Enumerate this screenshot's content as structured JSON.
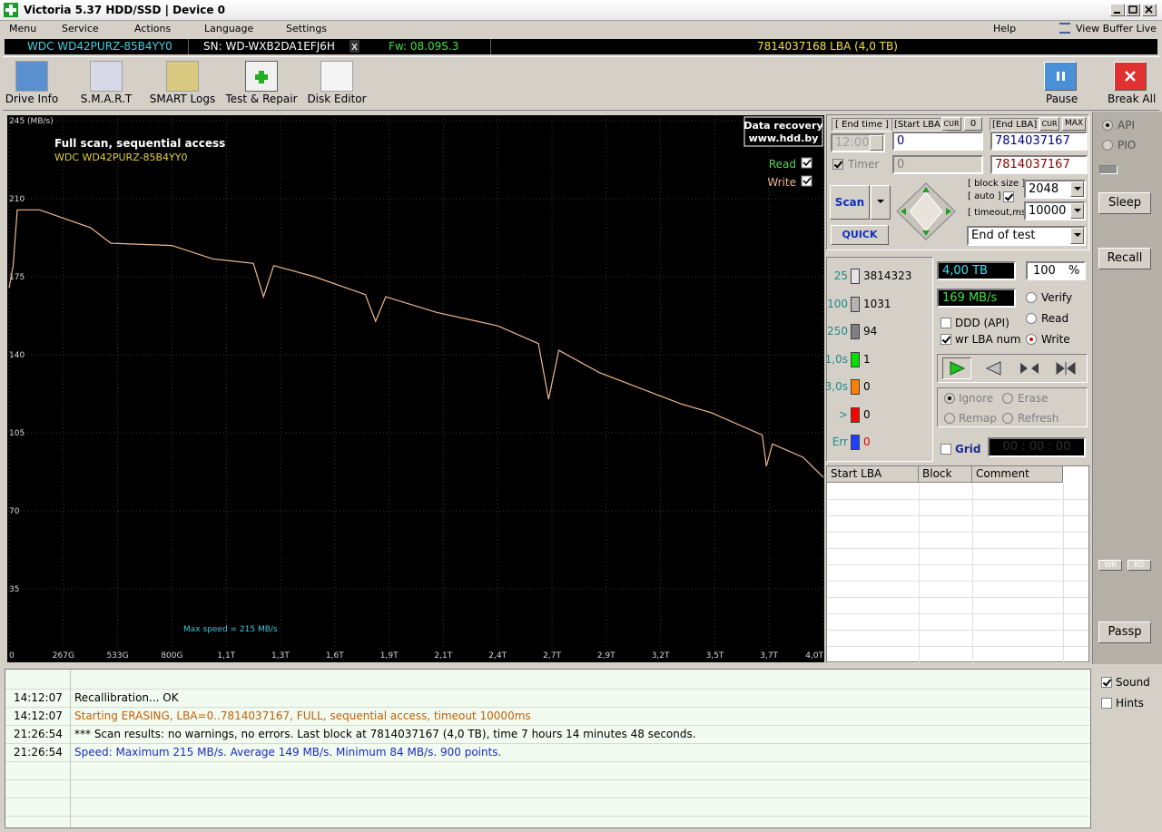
{
  "window": {
    "title": "Victoria 5.37 HDD/SSD | Device 0"
  },
  "menu": [
    "Menu",
    "Service",
    "Actions",
    "Language",
    "Settings"
  ],
  "help": "Help",
  "view_buffer": "View Buffer Live",
  "device": {
    "model": "WDC WD42PURZ-85B4YY0",
    "serial": "SN: WD-WXB2DA1EFJ6H",
    "close": "x",
    "firmware": "Fw: 08.09S.3",
    "capacity": "7814037168 LBA (4,0 TB)"
  },
  "toolbar": [
    "Drive Info",
    "S.M.A.R.T",
    "SMART Logs",
    "Test & Repair",
    "Disk Editor"
  ],
  "pause": "Pause",
  "break_all": "Break All",
  "chart_data": {
    "type": "line",
    "title": "Full scan, sequential access",
    "subtitle": "WDC WD42PURZ-85B4YY0",
    "watermark": [
      "Data recovery",
      "www.hdd.by"
    ],
    "annotation": "Max speed = 215 MB/s",
    "read": {
      "name": "Read",
      "color": "#5ad25a"
    },
    "xlim": [
      0,
      4.0
    ],
    "xticks": [
      0,
      {
        "value": 0.267,
        "label": "267G"
      },
      {
        "value": 0.533,
        "label": "533G"
      },
      {
        "value": 0.8,
        "label": "800G"
      },
      {
        "value": 1.067,
        "label": "1,1T"
      },
      {
        "value": 1.333,
        "label": "1,3T"
      },
      {
        "value": 1.6,
        "label": "1,6T"
      },
      {
        "value": 1.867,
        "label": "1,9T"
      },
      {
        "value": 2.133,
        "label": "2,1T"
      },
      {
        "value": 2.4,
        "label": "2,4T"
      },
      {
        "value": 2.667,
        "label": "2,7T"
      },
      {
        "value": 2.933,
        "label": "2,9T"
      },
      {
        "value": 3.2,
        "label": "3,2T"
      },
      {
        "value": 3.467,
        "label": "3,5T"
      },
      {
        "value": 3.733,
        "label": "3,7T"
      },
      {
        "value": 4.0,
        "label": "4,0T"
      }
    ],
    "ylim": [
      0,
      245
    ],
    "yticks": [
      35,
      70,
      105,
      140,
      175,
      210,
      {
        "value": 245,
        "label": "245 (MB/s)"
      }
    ],
    "grid": true,
    "series": [
      {
        "name": "Write",
        "color": "#f0b88c",
        "x": [
          0,
          0.02,
          0.04,
          0.15,
          0.4,
          0.5,
          0.8,
          1.0,
          1.2,
          1.25,
          1.3,
          1.5,
          1.75,
          1.8,
          1.85,
          2.1,
          2.4,
          2.6,
          2.65,
          2.7,
          2.9,
          3.1,
          3.3,
          3.45,
          3.7,
          3.72,
          3.75,
          3.9,
          4.0
        ],
        "values": [
          170,
          180,
          205,
          205,
          197,
          190,
          189,
          183,
          181,
          166,
          180,
          175,
          167,
          155,
          166,
          159,
          153,
          145,
          120,
          142,
          132,
          125,
          118,
          114,
          104,
          90,
          100,
          94,
          85
        ]
      }
    ]
  },
  "scan_settings": {
    "end_time_label": "[ End time ]",
    "start_lba_label": "[Start LBA]",
    "cur": "CUR",
    "zero": "0",
    "end_lba_label": "[End LBA]",
    "cur_end": "CUR",
    "max": "MAX",
    "time": "12:00",
    "start_lba": "0",
    "end_lba": "7814037167",
    "timer": "Timer",
    "timer_value": "0",
    "end_lba_current": "7814037167",
    "scan": "Scan",
    "quick": "QUICK",
    "block_size_label": "[ block size ]",
    "auto_label": "[ auto ]",
    "block_size": "2048",
    "timeout_label": "[ timeout,ms ]",
    "timeout": "10000",
    "end_action": "End of test"
  },
  "counters": [
    {
      "label": "25",
      "count": 3814323,
      "color": "#e4e4e4"
    },
    {
      "label": "100",
      "count": 1031,
      "color": "#b4b4b4"
    },
    {
      "label": "250",
      "count": 94,
      "color": "#808080"
    },
    {
      "label": "1,0s",
      "count": 1,
      "color": "#00e000"
    },
    {
      "label": "3,0s",
      "count": 0,
      "color": "#ff8000"
    },
    {
      "label": ">",
      "count": 0,
      "color": "#ff0000"
    },
    {
      "label": "Err",
      "count": 0,
      "color": "#2040ff"
    }
  ],
  "status": {
    "size": "4,00 TB",
    "percent": "100",
    "percent_unit": "%",
    "speed": "169 MB/s",
    "verify": "Verify",
    "read": "Read",
    "write": "Write",
    "ddd": "DDD (API)",
    "wr_lba": "wr LBA num",
    "ignore": "Ignore",
    "erase": "Erase",
    "remap": "Remap",
    "refresh": "Refresh",
    "grid": "Grid",
    "clock": "00 : 00 : 00"
  },
  "defect_table": {
    "columns": [
      "Start LBA",
      "Block",
      "Comment"
    ]
  },
  "side": {
    "api": "API",
    "pio": "PIO",
    "sleep": "Sleep",
    "recall": "Recall",
    "wr": "WR",
    "rd": "RD",
    "passp": "Passp",
    "sound": "Sound",
    "hints": "Hints"
  },
  "log": [
    {
      "time": "14:12:07",
      "message": "Recallibration... OK",
      "color": "#000000"
    },
    {
      "time": "14:12:07",
      "message": "Starting ERASING, LBA=0..7814037167, FULL, sequential access, timeout 10000ms",
      "color": "#c0600a"
    },
    {
      "time": "21:26:54",
      "message": "*** Scan results: no warnings, no errors. Last block at 7814037167 (4,0 TB), time 7 hours 14 minutes 48 seconds.",
      "color": "#000000"
    },
    {
      "time": "21:26:54",
      "message": "Speed: Maximum 215 MB/s. Average 149 MB/s. Minimum 84 MB/s. 900 points.",
      "color": "#1a2cc0"
    }
  ]
}
